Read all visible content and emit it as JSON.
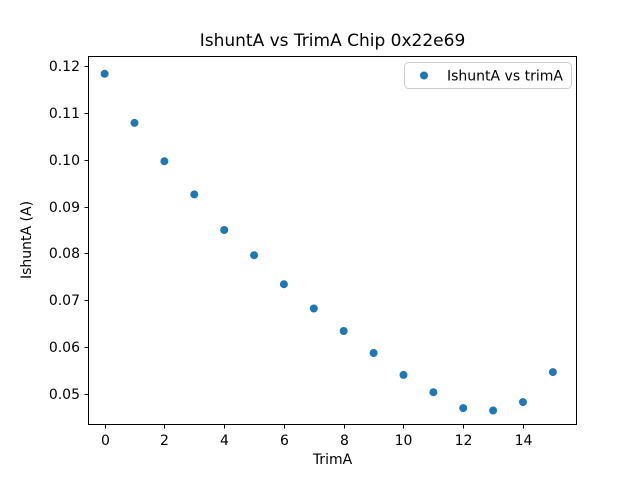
{
  "figure": {
    "title": "IshuntA vs TrimA Chip 0x22e69",
    "xlabel": "TrimA",
    "ylabel": "IshuntA (A)",
    "legend_label": "IshuntA vs trimA",
    "colors": {
      "marker": "#1f77b4",
      "axis": "#000000",
      "legend_border": "#cccccc",
      "background": "#ffffff"
    }
  },
  "chart_data": {
    "type": "scatter",
    "title": "IshuntA vs TrimA Chip 0x22e69",
    "xlabel": "TrimA",
    "ylabel": "IshuntA (A)",
    "legend": [
      "IshuntA vs trimA"
    ],
    "legend_position": "upper right",
    "marker_color": "#1f77b4",
    "grid": false,
    "x": [
      0,
      1,
      2,
      3,
      4,
      5,
      6,
      7,
      8,
      9,
      10,
      11,
      12,
      13,
      14,
      15
    ],
    "y": [
      0.1184,
      0.1079,
      0.0997,
      0.0926,
      0.085,
      0.0796,
      0.0734,
      0.0682,
      0.0634,
      0.0587,
      0.054,
      0.0503,
      0.0469,
      0.0464,
      0.0482,
      0.0546
    ],
    "xticks": [
      0,
      2,
      4,
      6,
      8,
      10,
      12,
      14
    ],
    "yticks": [
      0.05,
      0.06,
      0.07,
      0.08,
      0.09,
      0.1,
      0.11,
      0.12
    ],
    "xlim": [
      -0.54,
      15.79
    ],
    "ylim": [
      0.0434,
      0.1221
    ]
  }
}
